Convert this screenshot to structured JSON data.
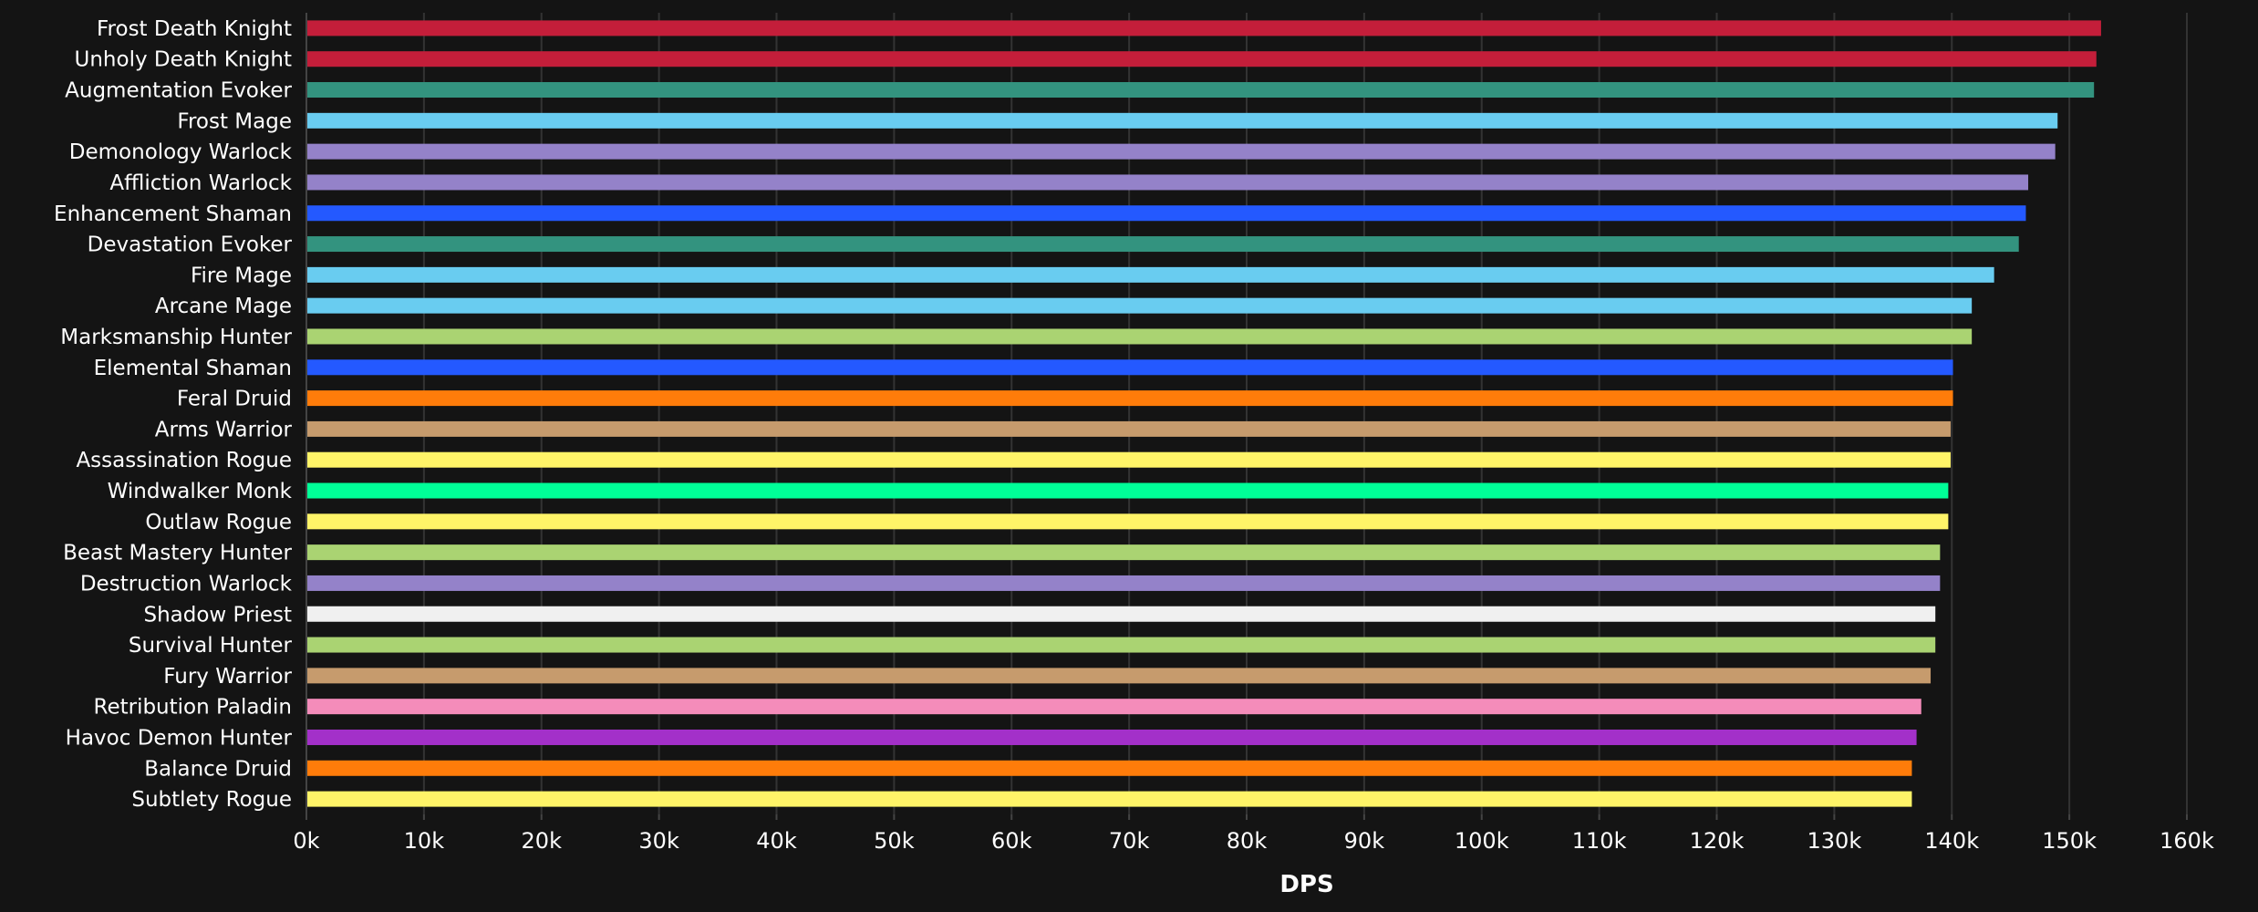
{
  "chart_data": {
    "type": "bar",
    "orientation": "horizontal",
    "title": "",
    "xlabel": "DPS",
    "ylabel": "",
    "xlim": [
      0,
      160000
    ],
    "x_ticks": [
      0,
      10000,
      20000,
      30000,
      40000,
      50000,
      60000,
      70000,
      80000,
      90000,
      100000,
      110000,
      120000,
      130000,
      140000,
      150000,
      160000
    ],
    "x_tick_labels": [
      "0k",
      "10k",
      "20k",
      "30k",
      "40k",
      "50k",
      "60k",
      "70k",
      "80k",
      "90k",
      "100k",
      "110k",
      "120k",
      "130k",
      "140k",
      "150k",
      "160k"
    ],
    "grid": "vertical",
    "background": "#141414",
    "categories": [
      "Frost Death Knight",
      "Unholy Death Knight",
      "Augmentation Evoker",
      "Frost Mage",
      "Demonology Warlock",
      "Affliction Warlock",
      "Enhancement Shaman",
      "Devastation Evoker",
      "Fire Mage",
      "Arcane Mage",
      "Marksmanship Hunter",
      "Elemental Shaman",
      "Feral Druid",
      "Arms Warrior",
      "Assassination Rogue",
      "Windwalker Monk",
      "Outlaw Rogue",
      "Beast Mastery Hunter",
      "Destruction Warlock",
      "Shadow Priest",
      "Survival Hunter",
      "Fury Warrior",
      "Retribution Paladin",
      "Havoc Demon Hunter",
      "Balance Druid",
      "Subtlety Rogue"
    ],
    "values": [
      152700,
      152300,
      152100,
      149000,
      148800,
      146500,
      146300,
      145700,
      143600,
      141700,
      141700,
      140100,
      140100,
      139900,
      139900,
      139700,
      139700,
      139000,
      139000,
      138600,
      138600,
      138200,
      137400,
      137000,
      136600,
      136600
    ],
    "colors": [
      "#C41E3A",
      "#C41E3A",
      "#33937F",
      "#69CCF0",
      "#9482C9",
      "#9482C9",
      "#2459FF",
      "#33937F",
      "#69CCF0",
      "#69CCF0",
      "#AAD372",
      "#2459FF",
      "#FF7C0A",
      "#C69B6D",
      "#FFF468",
      "#00FF98",
      "#FFF468",
      "#AAD372",
      "#9482C9",
      "#F0F0F0",
      "#AAD372",
      "#C69B6D",
      "#F48CBA",
      "#A330C9",
      "#FF7C0A",
      "#FFF468"
    ]
  }
}
